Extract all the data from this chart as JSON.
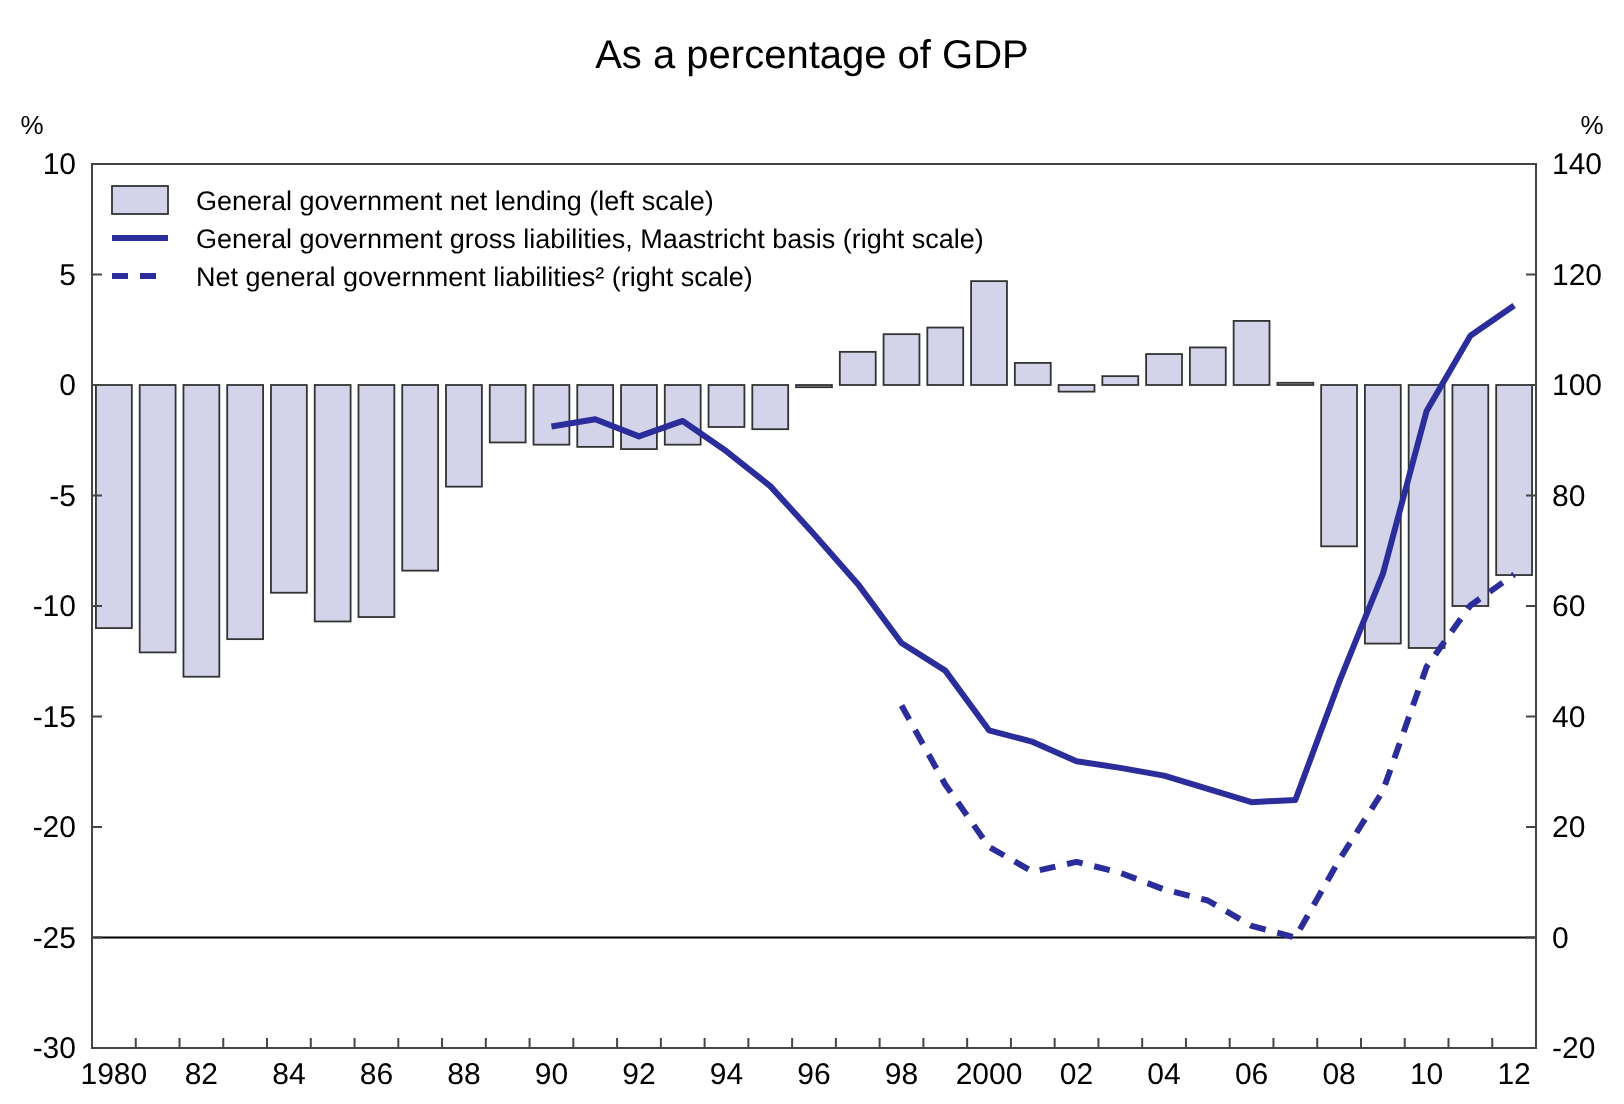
{
  "chart_data": {
    "type": "bar",
    "title": "As a percentage of GDP",
    "ylabel": "%",
    "y2label": "%",
    "categories": [
      "1980",
      null,
      "82",
      null,
      "84",
      null,
      "86",
      null,
      "88",
      null,
      "90",
      null,
      "92",
      null,
      "94",
      null,
      "96",
      null,
      "98",
      null,
      "2000",
      null,
      "02",
      null,
      "04",
      null,
      "06",
      null,
      "08",
      null,
      "10",
      null,
      "12"
    ],
    "series": [
      {
        "name": "General government net lending (left scale)",
        "color": "#d3d3ea",
        "values": [
          -11.0,
          -12.1,
          -13.2,
          -11.5,
          -9.4,
          -10.7,
          -10.5,
          -8.4,
          -4.6,
          -2.6,
          -2.7,
          -2.8,
          -2.9,
          -2.7,
          -1.9,
          -2.0,
          -0.1,
          1.5,
          2.3,
          2.6,
          4.7,
          1.0,
          -0.3,
          0.4,
          1.4,
          1.7,
          2.9,
          0.1,
          -7.3,
          -11.7,
          -11.9,
          -10.0,
          -8.6
        ]
      },
      {
        "name": "General government gross liabilities, Maastricht basis (right scale)",
        "type": "line",
        "axis": "y2",
        "color": "#2b2e9a",
        "line_style": "solid",
        "values": [
          null,
          null,
          null,
          null,
          null,
          null,
          null,
          null,
          null,
          null,
          92.5,
          93.8,
          90.7,
          93.5,
          88,
          81.7,
          73,
          64,
          53.3,
          48.3,
          37.5,
          35.4,
          31.9,
          30.7,
          29.3,
          26.9,
          24.5,
          24.9,
          46.2,
          65.8,
          95.3,
          108.9,
          114.4
        ]
      },
      {
        "name": "Net general government liabilities² (right scale)",
        "type": "line",
        "axis": "y2",
        "color": "#2b2e9a",
        "line_style": "dashed",
        "values": [
          null,
          null,
          null,
          null,
          null,
          null,
          null,
          null,
          null,
          null,
          null,
          null,
          null,
          null,
          null,
          null,
          null,
          null,
          42,
          27.7,
          16.4,
          11.9,
          13.7,
          11.7,
          8.7,
          6.7,
          2.1,
          0,
          14,
          26.5,
          49,
          60.1,
          65.7
        ]
      }
    ],
    "ylim": [
      -30,
      10
    ],
    "yticks": [
      -30,
      -25,
      -20,
      -15,
      -10,
      -5,
      0,
      5,
      10
    ],
    "y2lim": [
      -20,
      140
    ],
    "y2ticks": [
      -20,
      0,
      20,
      40,
      60,
      80,
      100,
      120,
      140
    ],
    "ref_lines": [
      {
        "axis": "y2",
        "value": 0,
        "color": "#000000"
      }
    ],
    "legend": "top left",
    "grid": false
  }
}
